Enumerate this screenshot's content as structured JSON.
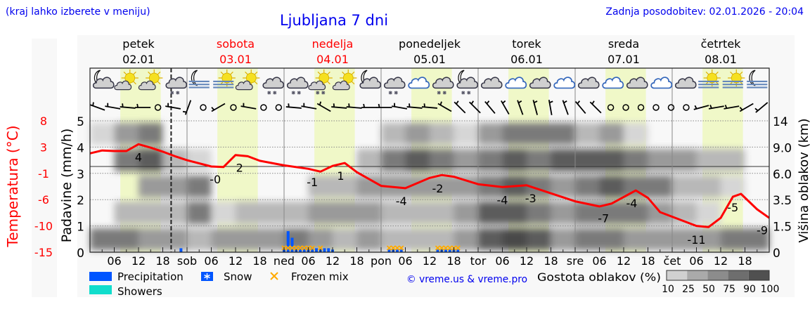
{
  "header": {
    "hint": "(kraj lahko izberete v meniju)",
    "title": "Ljubljana 7 dni",
    "updated": "Zadnja posodobitev: 02.01.2026 - 20:04"
  },
  "days": [
    {
      "name": "petek",
      "date": "02.01",
      "weekend": false,
      "abbr": ""
    },
    {
      "name": "sobota",
      "date": "03.01",
      "weekend": true,
      "abbr": "sob"
    },
    {
      "name": "nedelja",
      "date": "04.01",
      "weekend": true,
      "abbr": "ned"
    },
    {
      "name": "ponedeljek",
      "date": "05.01",
      "weekend": false,
      "abbr": "pon"
    },
    {
      "name": "torek",
      "date": "06.01",
      "weekend": false,
      "abbr": "tor"
    },
    {
      "name": "sreda",
      "date": "07.01",
      "weekend": false,
      "abbr": "sre"
    },
    {
      "name": "četrtek",
      "date": "08.01",
      "weekend": false,
      "abbr": "čet"
    }
  ],
  "colors": {
    "temperature": "#ff0000",
    "precipitation": "#0055ff",
    "showers": "#11ddcc",
    "frozen_mix": "#ffaa00",
    "day_band": "#f0f8c8",
    "text_link": "#0000ee"
  },
  "chart_data": {
    "type": "meteogram",
    "hour_labels": [
      "06",
      "12",
      "18"
    ],
    "now_hour": 20.07,
    "precip_axis": {
      "label": "Padavine (mm/h)",
      "ticks": [
        "0",
        "1",
        "2",
        "3",
        "4",
        "5"
      ],
      "range": [
        0,
        5.5
      ]
    },
    "temp_axis": {
      "label": "Temperatura (°C)",
      "ticks": [
        "-15",
        "-10",
        "-6",
        "-1",
        "3",
        "8"
      ],
      "range": [
        -15,
        8
      ]
    },
    "cloud_axis": {
      "label": "Višina oblakov (km)",
      "ticks": [
        "0",
        "1.5",
        "3.5",
        "6.0",
        "9.0",
        "14"
      ]
    },
    "temperature": [
      [
        0,
        2.3
      ],
      [
        3,
        2.8
      ],
      [
        6,
        2.7
      ],
      [
        9,
        2.7
      ],
      [
        12,
        3.9
      ],
      [
        15,
        3.3
      ],
      [
        18,
        2.6
      ],
      [
        21,
        1.8
      ],
      [
        24,
        1.1
      ],
      [
        30,
        0.0
      ],
      [
        33,
        -0.1
      ],
      [
        36,
        2.0
      ],
      [
        39,
        1.8
      ],
      [
        42,
        1.0
      ],
      [
        48,
        0.2
      ],
      [
        54,
        -0.4
      ],
      [
        57,
        -0.9
      ],
      [
        60,
        0.1
      ],
      [
        63,
        0.6
      ],
      [
        66,
        -1.0
      ],
      [
        72,
        -3.4
      ],
      [
        78,
        -3.8
      ],
      [
        84,
        -2.0
      ],
      [
        87,
        -1.5
      ],
      [
        90,
        -1.8
      ],
      [
        96,
        -3.1
      ],
      [
        102,
        -3.6
      ],
      [
        108,
        -3.3
      ],
      [
        114,
        -4.7
      ],
      [
        120,
        -6.1
      ],
      [
        126,
        -7.0
      ],
      [
        129,
        -6.5
      ],
      [
        135,
        -4.2
      ],
      [
        138,
        -5.5
      ],
      [
        141,
        -8.0
      ],
      [
        144,
        -8.8
      ],
      [
        150,
        -10.4
      ],
      [
        153,
        -10.6
      ],
      [
        156,
        -9.0
      ],
      [
        159,
        -5.3
      ],
      [
        161,
        -4.8
      ],
      [
        165,
        -7.5
      ],
      [
        168,
        -9.0
      ]
    ],
    "temperature_labels": [
      {
        "hour": 12,
        "temp": 3.9,
        "text": "4"
      },
      {
        "hour": 31,
        "temp": 0.0,
        "text": "-0"
      },
      {
        "hour": 37,
        "temp": 2.0,
        "text": "2"
      },
      {
        "hour": 55,
        "temp": -0.5,
        "text": "-1"
      },
      {
        "hour": 62,
        "temp": 0.6,
        "text": "1"
      },
      {
        "hour": 77,
        "temp": -3.8,
        "text": "-4"
      },
      {
        "hour": 86,
        "temp": -1.6,
        "text": "-2"
      },
      {
        "hour": 102,
        "temp": -3.6,
        "text": "-4"
      },
      {
        "hour": 109,
        "temp": -3.3,
        "text": "-3"
      },
      {
        "hour": 127,
        "temp": -6.8,
        "text": "-7"
      },
      {
        "hour": 134,
        "temp": -4.2,
        "text": "-4"
      },
      {
        "hour": 150,
        "temp": -10.6,
        "text": "-11"
      },
      {
        "hour": 159,
        "temp": -4.9,
        "text": "-5"
      },
      {
        "hour": 167,
        "temp": -8.9,
        "text": "-9"
      }
    ],
    "precipitation": [
      [
        22.5,
        0.15
      ],
      [
        48,
        0.15
      ],
      [
        49,
        0.8
      ],
      [
        50,
        0.55
      ],
      [
        51,
        0.2
      ],
      [
        52,
        0.2
      ],
      [
        53,
        0.2
      ],
      [
        54,
        0.2
      ],
      [
        55,
        0.2
      ],
      [
        56,
        0.15
      ],
      [
        57,
        0.15
      ],
      [
        58,
        0.15
      ],
      [
        59,
        0.15
      ],
      [
        60,
        0.1
      ],
      [
        74,
        0.1
      ],
      [
        75,
        0.1
      ],
      [
        76,
        0.1
      ],
      [
        77,
        0.1
      ],
      [
        86,
        0.1
      ],
      [
        87,
        0.1
      ],
      [
        88,
        0.1
      ],
      [
        89,
        0.1
      ],
      [
        90,
        0.1
      ],
      [
        91,
        0.1
      ]
    ],
    "frozen_mix_hours": [
      48,
      49,
      50,
      51,
      52,
      53,
      54,
      55,
      57,
      74,
      75,
      76,
      77,
      86,
      87,
      88,
      89,
      90,
      91
    ],
    "cloud_density_levels_km": [
      "0-1.5",
      "1.5-3.5",
      "3.5-6",
      "6-9",
      "9-14"
    ],
    "cloud_density": [
      [
        75,
        0,
        0,
        0,
        10
      ],
      [
        75,
        30,
        0,
        75,
        50
      ],
      [
        60,
        25,
        50,
        90,
        75
      ],
      [
        50,
        40,
        60,
        25,
        0
      ],
      [
        25,
        75,
        75,
        10,
        0
      ],
      [
        50,
        10,
        0,
        0,
        0
      ],
      [
        50,
        25,
        0,
        0,
        0
      ],
      [
        60,
        25,
        0,
        0,
        0
      ],
      [
        75,
        25,
        0,
        0,
        0
      ],
      [
        50,
        50,
        25,
        0,
        0
      ],
      [
        40,
        50,
        25,
        0,
        0
      ],
      [
        50,
        50,
        50,
        25,
        0
      ],
      [
        25,
        25,
        50,
        75,
        25
      ],
      [
        25,
        25,
        50,
        90,
        50
      ],
      [
        25,
        25,
        50,
        75,
        25
      ],
      [
        50,
        50,
        50,
        50,
        10
      ],
      [
        90,
        90,
        75,
        75,
        50
      ],
      [
        100,
        90,
        90,
        90,
        75
      ],
      [
        90,
        75,
        75,
        75,
        75
      ],
      [
        50,
        50,
        50,
        90,
        75
      ],
      [
        75,
        75,
        75,
        90,
        25
      ],
      [
        75,
        75,
        90,
        90,
        50
      ],
      [
        50,
        75,
        75,
        75,
        10
      ],
      [
        50,
        50,
        75,
        50,
        0
      ],
      [
        60,
        25,
        25,
        50,
        0
      ],
      [
        60,
        10,
        25,
        25,
        0
      ],
      [
        75,
        0,
        10,
        25,
        0
      ],
      [
        75,
        0,
        0,
        0,
        0
      ]
    ],
    "weather_icons": [
      "night-cloudy",
      "partly-sunny",
      "partly-sunny",
      "cloudy-snow",
      "night-fog",
      "sunny-fog",
      "partly-sunny",
      "cloudy-snow",
      "cloudy-snow",
      "partly-sunny-snow",
      "partly-sunny",
      "night-cloudy",
      "cloudy-snow",
      "cloudy",
      "cloudy-snow",
      "night-cloudy-snow",
      "cloudy",
      "cloudy",
      "cloudy",
      "cloudy",
      "cloudy",
      "cloudy",
      "cloudy",
      "cloudy",
      "cloudy",
      "sunny-fog",
      "sunny-fog",
      "night-fog"
    ],
    "wind_direction_deg": [
      110,
      100,
      95,
      90,
      null,
      100,
      20,
      null,
      60,
      null,
      100,
      null,
      null,
      95,
      100,
      120,
      95,
      95,
      90,
      90,
      100,
      95,
      95,
      120,
      135,
      135,
      140,
      150,
      160,
      165,
      170,
      160,
      140,
      135,
      null,
      null,
      null,
      null,
      null,
      null,
      75,
      80,
      80,
      60,
      50
    ]
  },
  "legend": {
    "precipitation": "Precipitation",
    "snow": "Snow",
    "frozen_mix": "Frozen mix",
    "showers": "Showers",
    "copyright": "© vreme.us & vreme.pro",
    "cloud_density_title": "Gostota oblakov (%)",
    "cloud_density_ticks": [
      "10",
      "25",
      "50",
      "75",
      "90",
      "100"
    ]
  }
}
